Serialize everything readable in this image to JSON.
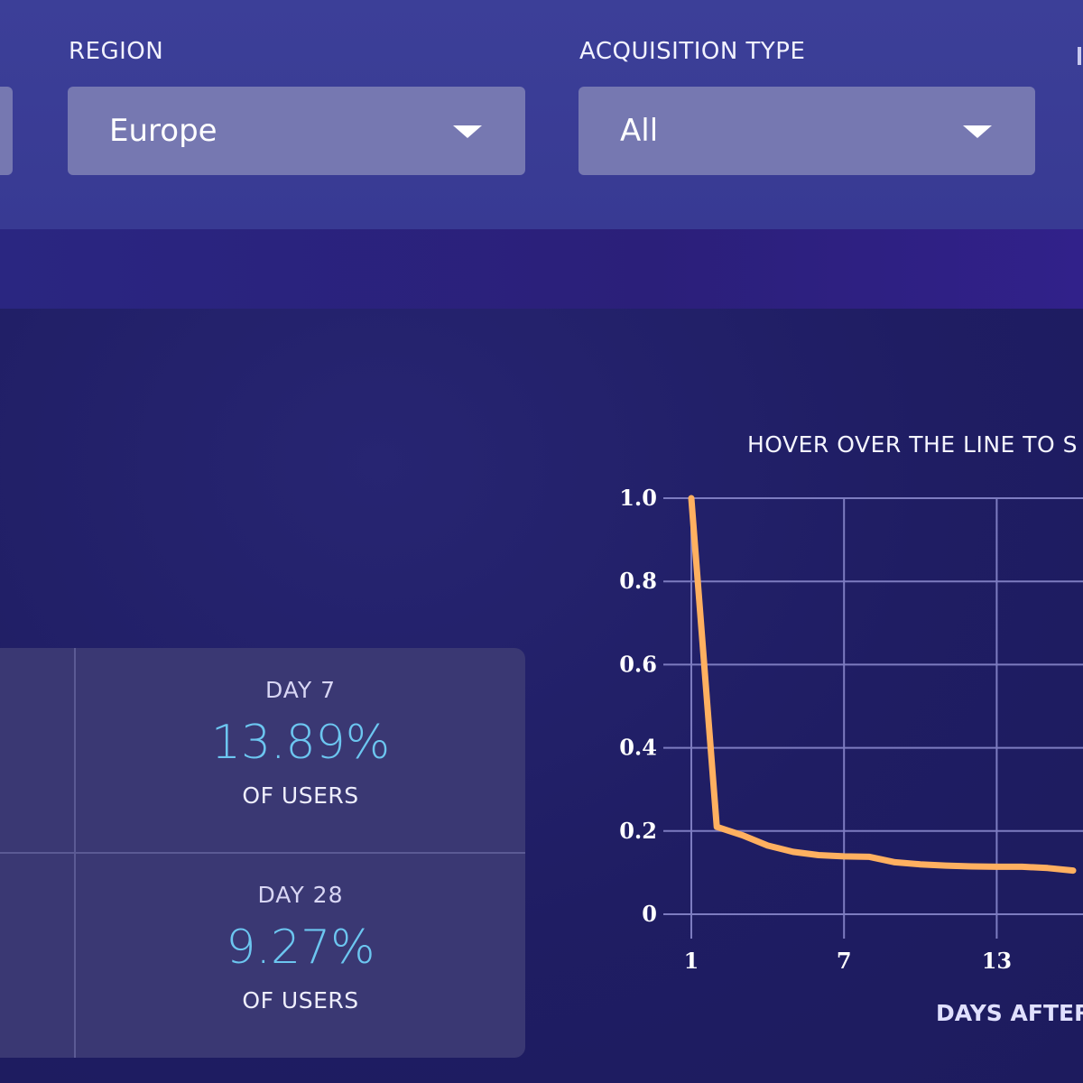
{
  "filters": {
    "region": {
      "label": "REGION",
      "value": "Europe"
    },
    "acquisition_type": {
      "label": "ACQUISITION TYPE",
      "value": "All"
    }
  },
  "stats": [
    {
      "day": "DAY 7",
      "percent": "13.89%",
      "caption": "OF USERS"
    },
    {
      "day": "DAY 28",
      "percent": "9.27%",
      "caption": "OF USERS"
    }
  ],
  "chart": {
    "hint": "HOVER OVER THE LINE TO S",
    "xlabel": "DAYS AFTER",
    "line_color": "#ffb060"
  },
  "chart_data": {
    "type": "line",
    "x": [
      1,
      2,
      3,
      4,
      5,
      6,
      7,
      8,
      9,
      10,
      11,
      12,
      13,
      14,
      15,
      16
    ],
    "series": [
      {
        "values": [
          1.0,
          0.21,
          0.19,
          0.165,
          0.15,
          0.142,
          0.139,
          0.138,
          0.125,
          0.12,
          0.117,
          0.115,
          0.114,
          0.114,
          0.111,
          0.105
        ]
      }
    ],
    "y_ticks": [
      "0",
      "0.2",
      "0.4",
      "0.6",
      "0.8",
      "1.0"
    ],
    "x_ticks": [
      "1",
      "7",
      "13"
    ],
    "ylim": [
      0,
      1.0
    ],
    "grid": true
  }
}
